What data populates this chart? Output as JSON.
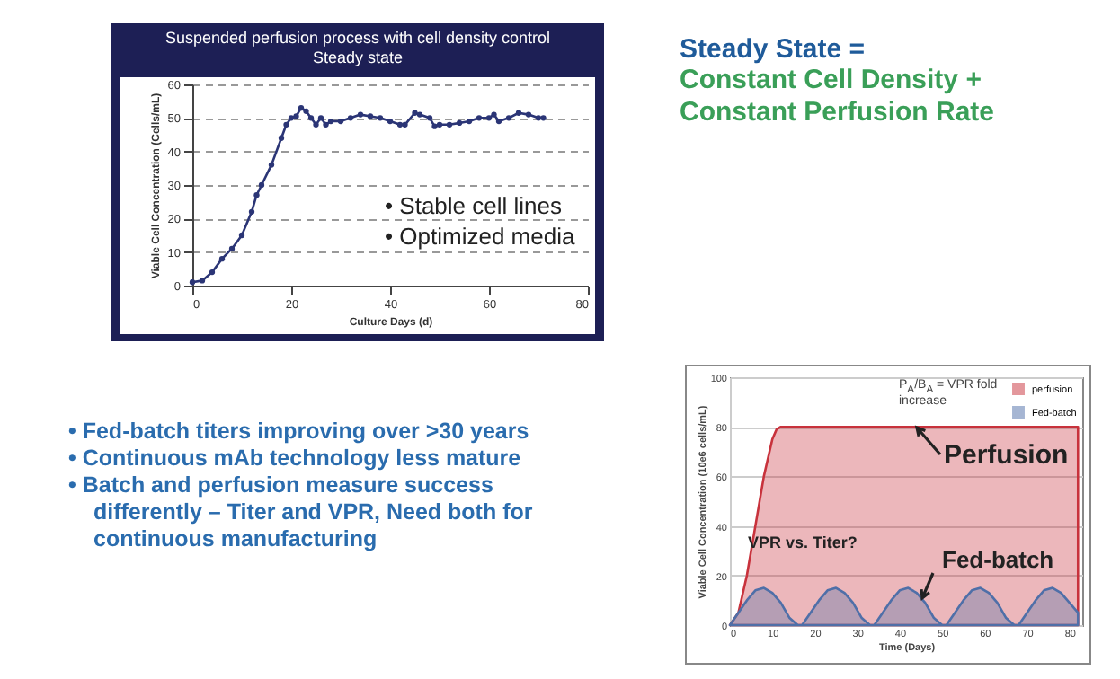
{
  "chart_data": [
    {
      "type": "line",
      "title": "Suspended perfusion process with cell density control",
      "subtitle": "Steady state",
      "xlabel": "Culture Days (d)",
      "ylabel": "Viable Cell Concentration (Cells/mL)",
      "x": [
        0,
        2,
        4,
        6,
        8,
        10,
        12,
        13,
        14,
        16,
        18,
        19,
        20,
        21,
        22,
        23,
        24,
        25,
        26,
        27,
        28,
        30,
        32,
        34,
        36,
        38,
        40,
        42,
        43,
        45,
        46,
        48,
        49,
        50,
        52,
        54,
        56,
        58,
        60,
        61,
        62,
        64,
        66,
        68,
        70,
        71
      ],
      "series": [
        {
          "color": "#2b3576",
          "values": [
            1,
            1.5,
            4,
            8,
            11,
            15,
            22,
            27,
            30,
            36,
            44,
            48,
            50,
            50.5,
            53,
            52,
            50,
            48,
            50,
            48,
            49,
            49,
            50,
            51,
            50.5,
            50,
            49,
            48,
            48,
            51.5,
            51,
            50,
            47.5,
            48,
            48,
            48.5,
            49,
            50,
            50,
            51,
            49,
            50,
            51.5,
            51,
            50,
            50
          ]
        }
      ],
      "xlim": [
        0,
        80
      ],
      "ylim": [
        0,
        60
      ],
      "xticks": [
        0,
        20,
        40,
        60,
        80
      ],
      "yticks": [
        0,
        10,
        20,
        30,
        40,
        50,
        60
      ],
      "grid": "y",
      "marker": "circle",
      "annotations": [
        "• Stable cell lines",
        "• Optimized media"
      ]
    },
    {
      "type": "area",
      "xlabel": "Time (Days)",
      "ylabel": "Viable Cell Concentration (10e6 cells/mL)",
      "series": [
        {
          "name": "perfusion",
          "color": "#c8323c",
          "x": [
            0,
            2,
            4,
            6,
            8,
            10,
            11,
            12,
            82
          ],
          "values": [
            0,
            5,
            20,
            40,
            60,
            75,
            79,
            80,
            80
          ]
        },
        {
          "name": "Fed-batch",
          "color": "#4f6fa8",
          "x": [
            0,
            2,
            4,
            6,
            8,
            10,
            12,
            14,
            16,
            17,
            19,
            21,
            23,
            25,
            27,
            29,
            31,
            33,
            34,
            36,
            38,
            40,
            42,
            44,
            46,
            48,
            50,
            51,
            53,
            55,
            57,
            59,
            61,
            63,
            65,
            67,
            68,
            70,
            72,
            74,
            76,
            78,
            80,
            82
          ],
          "values": [
            0,
            5,
            10,
            14,
            15,
            13,
            9,
            3,
            0,
            0,
            5,
            10,
            14,
            15,
            13,
            9,
            3,
            0,
            0,
            5,
            10,
            14,
            15,
            13,
            9,
            3,
            0,
            0,
            5,
            10,
            14,
            15,
            13,
            9,
            3,
            0,
            0,
            5,
            10,
            14,
            15,
            13,
            9,
            5
          ]
        }
      ],
      "xlim": [
        0,
        83
      ],
      "ylim": [
        0,
        100
      ],
      "xticks": [
        0,
        10,
        20,
        30,
        40,
        50,
        60,
        70,
        80
      ],
      "yticks": [
        0,
        20,
        40,
        60,
        80,
        100
      ],
      "grid": "y",
      "legend": "top right",
      "annotations": [
        "P$_{A}$/B$_{A}$ = VPR fold increase",
        "Perfusion",
        "VPR vs. Titer?",
        "Fed-batch"
      ]
    },
    {
      "type": "other",
      "title": "Steady State =",
      "subtitle": "Constant Cell Density +\nConstant Perfusion Rate",
      "annotations": [
        "• Fed-batch titers improving over >30 years",
        "• Continuous mAb technology less mature",
        "• Batch and perfusion measure success differently – Titer and VPR,  Need both for continuous manufacturing"
      ]
    }
  ]
}
